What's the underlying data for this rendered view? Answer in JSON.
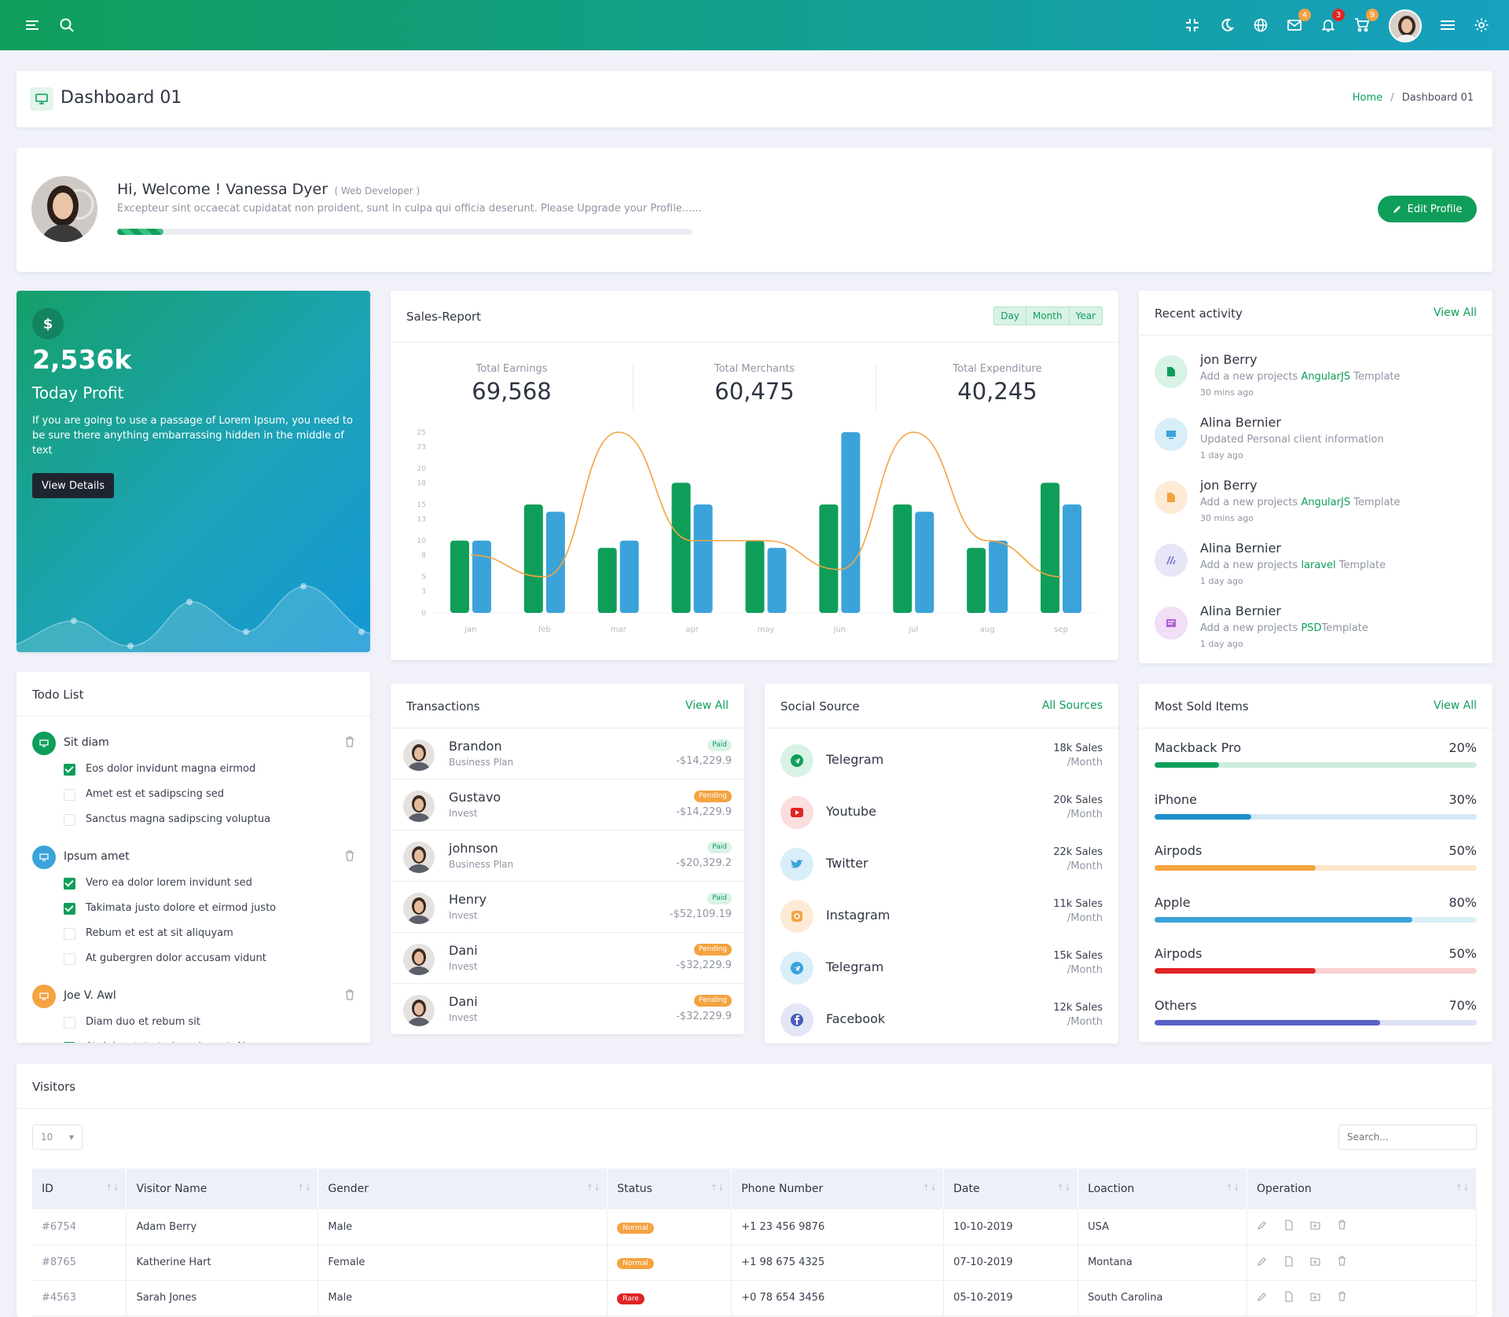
{
  "topbar": {
    "badges": {
      "mail": "4",
      "bell": "3",
      "cart": "9"
    }
  },
  "page_header": {
    "title": "Dashboard 01",
    "breadcrumb": [
      "Home",
      "Dashboard 01"
    ]
  },
  "welcome": {
    "greeting": "Hi, Welcome ! Vanessa Dyer",
    "role": "( Web Developer )",
    "message": "Excepteur sint occaecat cupidatat non proident, sunt in culpa qui officia deserunt. Please Upgrade your Profile......",
    "profile_progress": 0.08,
    "edit_button": "Edit Profile"
  },
  "profit_card": {
    "currency": "$",
    "value": "2,536k",
    "label": "Today Profit",
    "text": "If you are going to use a passage of Lorem Ipsum, you need to be sure there anything embarrassing hidden in the middle of text",
    "button": "View Details"
  },
  "sales_report": {
    "title": "Sales-Report",
    "filters": [
      "Day",
      "Month",
      "Year"
    ],
    "stats": [
      {
        "label": "Total Earnings",
        "value": "69,568"
      },
      {
        "label": "Total Merchants",
        "value": "60,475"
      },
      {
        "label": "Total Expenditure",
        "value": "40,245"
      }
    ]
  },
  "chart_data": {
    "type": "bar",
    "categories": [
      "jan",
      "feb",
      "mar",
      "apr",
      "may",
      "jun",
      "jul",
      "aug",
      "sep"
    ],
    "y_ticks": [
      "0",
      "3",
      "5",
      "8",
      "10",
      "13",
      "15",
      "18",
      "20",
      "23",
      "25"
    ],
    "ylim": [
      0,
      25
    ],
    "series": [
      {
        "color": "#0f9e5a",
        "values": [
          10,
          15,
          9,
          18,
          10,
          15,
          15,
          9,
          18
        ]
      },
      {
        "color": "#3ba3d9",
        "values": [
          10,
          14,
          10,
          15,
          9,
          25,
          14,
          10,
          15
        ]
      },
      {
        "type": "line",
        "color": "#f4a340",
        "values": [
          8,
          5,
          25,
          10,
          10,
          6,
          25,
          10,
          5
        ]
      }
    ],
    "grid": false
  },
  "recent_activity": {
    "title": "Recent activity",
    "view_all": "View All",
    "items": [
      {
        "name": "jon Berry",
        "pre": "Add a new projects ",
        "link": "AngularJS",
        "post": " Template",
        "time": "30 mins ago",
        "bg": "#d9f2e6",
        "color": "#0f9e5a",
        "icon": "file-icon"
      },
      {
        "name": "Alina Bernier",
        "pre": "Updated Personal client information",
        "link": "",
        "post": "",
        "time": "1 day ago",
        "bg": "#d8eef8",
        "color": "#3ba3d9",
        "icon": "monitor-icon"
      },
      {
        "name": "jon Berry",
        "pre": "Add a new projects ",
        "link": "AngularJS",
        "post": " Template",
        "time": "30 mins ago",
        "bg": "#fdebd6",
        "color": "#f4a340",
        "icon": "file-icon"
      },
      {
        "name": "Alina Bernier",
        "pre": "Add a new projects ",
        "link": "laravel",
        "post": " Template",
        "time": "1 day ago",
        "bg": "#e6e6f7",
        "color": "#6c6cd6",
        "icon": "laravel-icon"
      },
      {
        "name": "Alina Bernier",
        "pre": "Add a new projects ",
        "link": "PSD",
        "post": "Template",
        "time": "1 day ago",
        "bg": "#f1def7",
        "color": "#b25fd6",
        "icon": "list-icon"
      }
    ]
  },
  "todo": {
    "title": "Todo List",
    "groups": [
      {
        "title": "Sit diam",
        "color": "#0f9e5a",
        "items": [
          {
            "text": "Eos dolor invidunt magna eirmod",
            "done": true
          },
          {
            "text": "Amet est et sadipscing sed",
            "done": false
          },
          {
            "text": "Sanctus magna sadipscing voluptua",
            "done": false
          }
        ]
      },
      {
        "title": "Ipsum amet",
        "color": "#3ba3d9",
        "items": [
          {
            "text": "Vero ea dolor lorem invidunt sed",
            "done": true
          },
          {
            "text": "Takimata justo dolore et eirmod justo",
            "done": true
          },
          {
            "text": "Rebum et est at sit aliquyam",
            "done": false
          },
          {
            "text": "At gubergren dolor accusam vidunt",
            "done": false
          }
        ]
      },
      {
        "title": "Joe V. Awl",
        "color": "#f4a340",
        "items": [
          {
            "text": "Diam duo et rebum sit",
            "done": false
          },
          {
            "text": "At dolor stet et eirmod amet. No",
            "done": true
          }
        ]
      }
    ]
  },
  "transactions": {
    "title": "Transactions",
    "view_all": "View All",
    "items": [
      {
        "name": "Brandon",
        "plan": "Business Plan",
        "status": "Paid",
        "amount": "-$14,229.9"
      },
      {
        "name": "Gustavo",
        "plan": "Invest",
        "status": "Pending",
        "amount": "-$14,229.9"
      },
      {
        "name": "johnson",
        "plan": "Business Plan",
        "status": "Paid",
        "amount": "-$20,329.2"
      },
      {
        "name": "Henry",
        "plan": "Invest",
        "status": "Paid",
        "amount": "-$52,109.19"
      },
      {
        "name": "Dani",
        "plan": "Invest",
        "status": "Pending",
        "amount": "-$32,229.9"
      },
      {
        "name": "Dani",
        "plan": "Invest",
        "status": "Pending",
        "amount": "-$32,229.9"
      }
    ]
  },
  "social": {
    "title": "Social Source",
    "all": "All Sources",
    "items": [
      {
        "name": "Telegram",
        "sales": "18k Sales",
        "per": "/Month",
        "bg": "#d9f2e6",
        "color": "#0f9e5a",
        "icon": "telegram-icon"
      },
      {
        "name": "Youtube",
        "sales": "20k Sales",
        "per": "/Month",
        "bg": "#fbdede",
        "color": "#e02424",
        "icon": "youtube-icon"
      },
      {
        "name": "Twitter",
        "sales": "22k Sales",
        "per": "/Month",
        "bg": "#d8eef8",
        "color": "#3ba3d9",
        "icon": "twitter-icon"
      },
      {
        "name": "Instagram",
        "sales": "11k Sales",
        "per": "/Month",
        "bg": "#fdebd6",
        "color": "#f4a340",
        "icon": "instagram-icon"
      },
      {
        "name": "Telegram",
        "sales": "15k Sales",
        "per": "/Month",
        "bg": "#d8eef8",
        "color": "#3ba3d9",
        "icon": "telegram-icon"
      },
      {
        "name": "Facebook",
        "sales": "12k Sales",
        "per": "/Month",
        "bg": "#e3e6f5",
        "color": "#4b5fb8",
        "icon": "facebook-icon"
      }
    ]
  },
  "most_sold": {
    "title": "Most Sold Items",
    "view_all": "View All",
    "items": [
      {
        "name": "Mackback Pro",
        "pct": "20%",
        "value": 0.2,
        "color": "#0f9e5a",
        "track": "#cdeedd"
      },
      {
        "name": "iPhone",
        "pct": "30%",
        "value": 0.3,
        "color": "#1f8fc9",
        "track": "#d3e9f5"
      },
      {
        "name": "Airpods",
        "pct": "50%",
        "value": 0.5,
        "color": "#f4a340",
        "track": "#fde6cc"
      },
      {
        "name": "Apple",
        "pct": "80%",
        "value": 0.8,
        "color": "#3ba3d9",
        "track": "#d8eef8"
      },
      {
        "name": "Airpods",
        "pct": "50%",
        "value": 0.5,
        "color": "#e02424",
        "track": "#f9d2d2"
      },
      {
        "name": "Others",
        "pct": "70%",
        "value": 0.7,
        "color": "#5a62c9",
        "track": "#dfe1f5"
      }
    ]
  },
  "visitors": {
    "title": "Visitors",
    "page_size": "10",
    "search_placeholder": "Search...",
    "columns": [
      "ID",
      "Visitor Name",
      "Gender",
      "Status",
      "Phone Number",
      "Date",
      "Loaction",
      "Operation"
    ],
    "rows": [
      {
        "id": "#6754",
        "name": "Adam Berry",
        "gender": "Male",
        "status": "Normal",
        "phone": "+1 23 456 9876",
        "date": "10-10-2019",
        "location": "USA"
      },
      {
        "id": "#8765",
        "name": "Katherine Hart",
        "gender": "Female",
        "status": "Normal",
        "phone": "+1 98 675 4325",
        "date": "07-10-2019",
        "location": "Montana"
      },
      {
        "id": "#4563",
        "name": "Sarah Jones",
        "gender": "Male",
        "status": "Rare",
        "phone": "+0 78 654 3456",
        "date": "05-10-2019",
        "location": "South Carolina"
      }
    ]
  }
}
